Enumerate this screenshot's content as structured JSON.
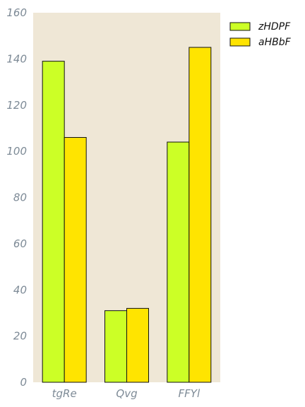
{
  "chart_data": {
    "type": "bar",
    "categories": [
      "tgRe",
      "Qvg",
      "FFYl"
    ],
    "series": [
      {
        "name": "zHDPF",
        "values": [
          139,
          31,
          104
        ],
        "color": "#ccff26"
      },
      {
        "name": "aHBbF",
        "values": [
          106,
          32,
          145
        ],
        "color": "#ffe400"
      }
    ],
    "ylim": [
      0,
      160
    ],
    "yticks": [
      0,
      20,
      40,
      60,
      80,
      100,
      120,
      140,
      160
    ],
    "grid": false,
    "legend": "top-right",
    "plot_background": "#efe7d6"
  }
}
